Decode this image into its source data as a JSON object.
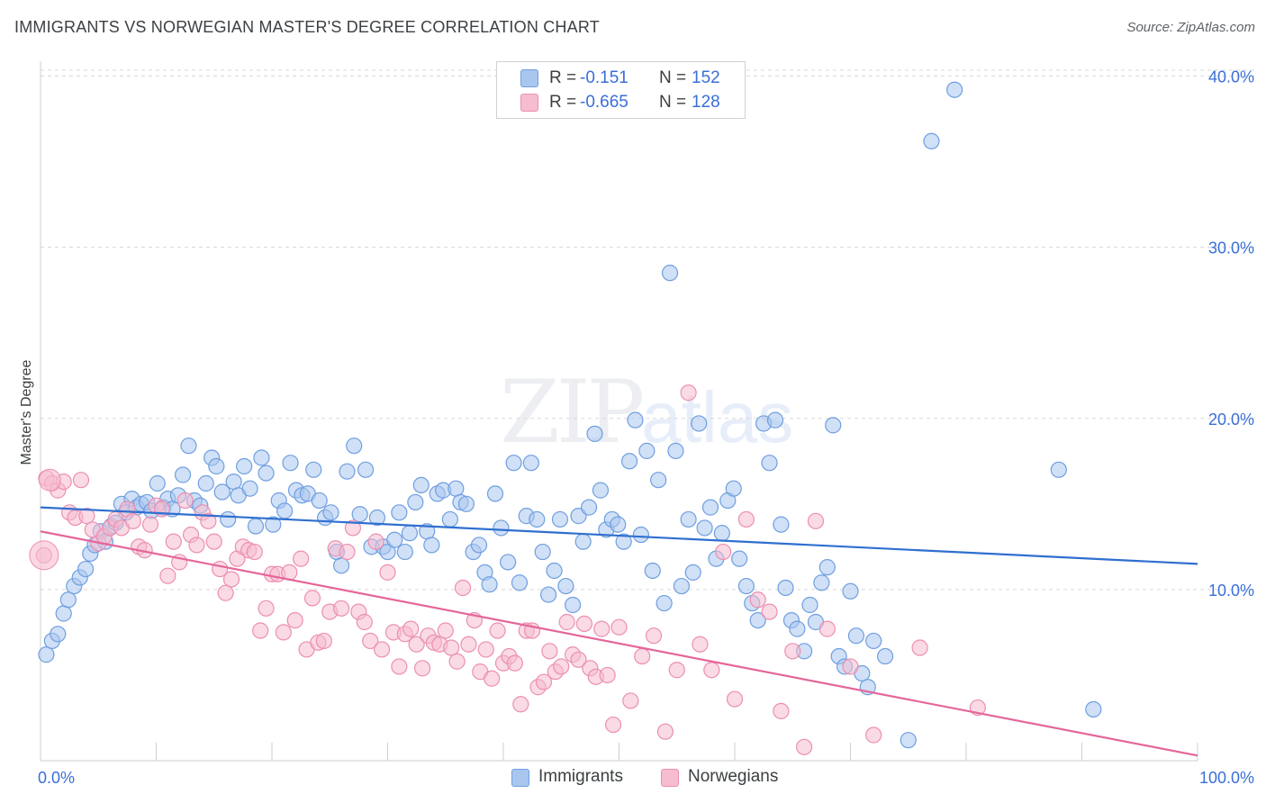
{
  "title": "IMMIGRANTS VS NORWEGIAN MASTER'S DEGREE CORRELATION CHART",
  "source": "Source: ZipAtlas.com",
  "watermark": {
    "zip": "ZIP",
    "atlas": "atlas"
  },
  "legend": {
    "rows": [
      {
        "r_label": "R =",
        "r_value": "-0.151",
        "n_label": "N =",
        "n_value": "152"
      },
      {
        "r_label": "R =",
        "r_value": "-0.665",
        "n_label": "N =",
        "n_value": "128"
      }
    ]
  },
  "bottom_legend": {
    "immigrants": "Immigrants",
    "norwegians": "Norwegians"
  },
  "colors": {
    "immigrants_fill": "#a9c6ef",
    "immigrants_stroke": "#6f9fe0",
    "immigrants_line": "#2f6fd0",
    "norwegians_fill": "#f6bcd0",
    "norwegians_stroke": "#ec8fb0",
    "norwegians_line": "#e4669a",
    "tick_text": "#3a6fd8",
    "grid": "#d8d8d8"
  },
  "chart_data": {
    "type": "scatter",
    "title": "IMMIGRANTS VS NORWEGIAN MASTER'S DEGREE CORRELATION CHART",
    "xlabel": "",
    "ylabel": "Master's Degree",
    "xlim": [
      0,
      100
    ],
    "ylim": [
      0,
      40.5
    ],
    "x_tick_labels": [
      "0.0%",
      "100.0%"
    ],
    "y_ticks": [
      10,
      20,
      30,
      40
    ],
    "y_tick_labels": [
      "10.0%",
      "20.0%",
      "30.0%",
      "40.0%"
    ],
    "series": [
      {
        "name": "Immigrants",
        "R": -0.151,
        "N": 152,
        "trend": {
          "x": [
            0,
            100
          ],
          "y": [
            14.8,
            11.5
          ]
        },
        "points": [
          [
            0.5,
            6.2
          ],
          [
            1,
            7
          ],
          [
            1.5,
            7.4
          ],
          [
            2,
            8.6
          ],
          [
            2.4,
            9.4
          ],
          [
            2.9,
            10.2
          ],
          [
            3.4,
            10.7
          ],
          [
            3.9,
            11.2
          ],
          [
            4.3,
            12.1
          ],
          [
            4.7,
            12.6
          ],
          [
            5.2,
            13.4
          ],
          [
            5.6,
            12.8
          ],
          [
            6.1,
            13.7
          ],
          [
            6.5,
            13.9
          ],
          [
            7,
            15
          ],
          [
            7.4,
            14.5
          ],
          [
            7.9,
            15.3
          ],
          [
            8.3,
            14.8
          ],
          [
            8.7,
            15
          ],
          [
            9.2,
            15.1
          ],
          [
            9.6,
            14.6
          ],
          [
            10.1,
            16.2
          ],
          [
            10.6,
            14.8
          ],
          [
            11,
            15.3
          ],
          [
            11.4,
            14.7
          ],
          [
            11.9,
            15.5
          ],
          [
            12.3,
            16.7
          ],
          [
            12.8,
            18.4
          ],
          [
            13.3,
            15.2
          ],
          [
            13.8,
            14.9
          ],
          [
            14.3,
            16.2
          ],
          [
            14.8,
            17.7
          ],
          [
            15.2,
            17.2
          ],
          [
            15.7,
            15.7
          ],
          [
            16.2,
            14.1
          ],
          [
            16.7,
            16.3
          ],
          [
            17.1,
            15.5
          ],
          [
            17.6,
            17.2
          ],
          [
            18.1,
            15.9
          ],
          [
            18.6,
            13.7
          ],
          [
            19.1,
            17.7
          ],
          [
            19.5,
            16.8
          ],
          [
            20.1,
            13.8
          ],
          [
            20.6,
            15.2
          ],
          [
            21.1,
            14.6
          ],
          [
            21.6,
            17.4
          ],
          [
            22.1,
            15.8
          ],
          [
            22.6,
            15.5
          ],
          [
            23.1,
            15.6
          ],
          [
            23.6,
            17
          ],
          [
            24.1,
            15.2
          ],
          [
            24.6,
            14.2
          ],
          [
            25.1,
            14.5
          ],
          [
            25.6,
            12.2
          ],
          [
            26,
            11.4
          ],
          [
            26.5,
            16.9
          ],
          [
            27.1,
            18.4
          ],
          [
            27.6,
            14.4
          ],
          [
            28.1,
            17
          ],
          [
            28.6,
            12.5
          ],
          [
            29.1,
            14.2
          ],
          [
            29.6,
            12.5
          ],
          [
            30,
            12.2
          ],
          [
            30.6,
            12.9
          ],
          [
            31,
            14.5
          ],
          [
            31.5,
            12.2
          ],
          [
            31.9,
            13.3
          ],
          [
            32.4,
            15.1
          ],
          [
            32.9,
            16.1
          ],
          [
            33.4,
            13.4
          ],
          [
            33.8,
            12.6
          ],
          [
            34.3,
            15.6
          ],
          [
            34.8,
            15.8
          ],
          [
            35.4,
            14.1
          ],
          [
            35.9,
            15.9
          ],
          [
            36.3,
            15.1
          ],
          [
            36.8,
            15
          ],
          [
            37.4,
            12.2
          ],
          [
            37.9,
            12.6
          ],
          [
            38.4,
            11
          ],
          [
            38.8,
            10.3
          ],
          [
            39.3,
            15.6
          ],
          [
            39.8,
            13.6
          ],
          [
            40.4,
            11.6
          ],
          [
            40.9,
            17.4
          ],
          [
            41.4,
            10.4
          ],
          [
            42,
            14.3
          ],
          [
            42.4,
            17.4
          ],
          [
            42.9,
            14.1
          ],
          [
            43.4,
            12.2
          ],
          [
            43.9,
            9.7
          ],
          [
            44.4,
            11.1
          ],
          [
            44.9,
            14.1
          ],
          [
            45.4,
            10.2
          ],
          [
            46,
            9.1
          ],
          [
            46.5,
            14.3
          ],
          [
            46.9,
            12.8
          ],
          [
            47.4,
            14.8
          ],
          [
            47.9,
            19.1
          ],
          [
            48.4,
            15.8
          ],
          [
            48.9,
            13.5
          ],
          [
            49.4,
            14.1
          ],
          [
            49.9,
            13.8
          ],
          [
            50.4,
            12.8
          ],
          [
            50.9,
            17.5
          ],
          [
            51.4,
            19.9
          ],
          [
            51.9,
            13.2
          ],
          [
            52.4,
            18.1
          ],
          [
            52.9,
            11.1
          ],
          [
            53.4,
            16.4
          ],
          [
            53.9,
            9.2
          ],
          [
            54.4,
            28.5
          ],
          [
            54.9,
            18.1
          ],
          [
            55.4,
            10.2
          ],
          [
            56,
            14.1
          ],
          [
            56.4,
            11
          ],
          [
            56.9,
            19.7
          ],
          [
            57.4,
            13.6
          ],
          [
            57.9,
            14.8
          ],
          [
            58.4,
            11.8
          ],
          [
            58.9,
            13.3
          ],
          [
            59.4,
            15.2
          ],
          [
            59.9,
            15.9
          ],
          [
            60.4,
            11.8
          ],
          [
            61,
            10.2
          ],
          [
            61.5,
            9.2
          ],
          [
            62,
            8.2
          ],
          [
            62.5,
            19.7
          ],
          [
            63,
            17.4
          ],
          [
            63.5,
            19.9
          ],
          [
            64,
            13.8
          ],
          [
            64.4,
            10.1
          ],
          [
            64.9,
            8.2
          ],
          [
            65.4,
            7.7
          ],
          [
            66,
            6.4
          ],
          [
            66.5,
            9.1
          ],
          [
            67,
            8.1
          ],
          [
            67.5,
            10.4
          ],
          [
            68,
            11.3
          ],
          [
            68.5,
            19.6
          ],
          [
            69,
            6.1
          ],
          [
            69.5,
            5.5
          ],
          [
            70,
            9.9
          ],
          [
            70.5,
            7.3
          ],
          [
            71,
            5.1
          ],
          [
            71.5,
            4.3
          ],
          [
            72,
            7
          ],
          [
            73,
            6.1
          ],
          [
            75,
            1.2
          ],
          [
            77,
            36.2
          ],
          [
            79,
            39.2
          ],
          [
            88,
            17
          ],
          [
            91,
            3
          ]
        ]
      },
      {
        "name": "Norwegians",
        "R": -0.665,
        "N": 128,
        "trend": {
          "x": [
            0,
            100
          ],
          "y": [
            13.4,
            0.3
          ]
        },
        "points": [
          [
            0.5,
            16.5
          ],
          [
            1,
            16.2
          ],
          [
            1.5,
            15.8
          ],
          [
            2,
            16.3
          ],
          [
            2.5,
            14.5
          ],
          [
            3,
            14.2
          ],
          [
            3.5,
            16.4
          ],
          [
            4,
            14.3
          ],
          [
            4.5,
            13.5
          ],
          [
            5,
            12.7
          ],
          [
            5.5,
            13.1
          ],
          [
            6,
            13.6
          ],
          [
            6.5,
            14.1
          ],
          [
            7,
            13.6
          ],
          [
            7.5,
            14.7
          ],
          [
            8,
            14
          ],
          [
            8.5,
            12.5
          ],
          [
            9,
            12.3
          ],
          [
            9.5,
            13.8
          ],
          [
            10,
            14.9
          ],
          [
            10.5,
            14.7
          ],
          [
            11,
            10.8
          ],
          [
            11.5,
            12.8
          ],
          [
            12,
            11.6
          ],
          [
            12.5,
            15.2
          ],
          [
            13,
            13.2
          ],
          [
            13.5,
            12.6
          ],
          [
            14,
            14.5
          ],
          [
            14.5,
            14
          ],
          [
            15,
            12.8
          ],
          [
            15.5,
            11.2
          ],
          [
            16,
            9.8
          ],
          [
            16.5,
            10.6
          ],
          [
            17,
            11.8
          ],
          [
            17.5,
            12.5
          ],
          [
            18,
            12.3
          ],
          [
            18.5,
            12.2
          ],
          [
            19,
            7.6
          ],
          [
            19.5,
            8.9
          ],
          [
            20,
            10.9
          ],
          [
            20.5,
            10.9
          ],
          [
            21,
            7.5
          ],
          [
            21.5,
            11
          ],
          [
            22,
            8.2
          ],
          [
            22.5,
            11.8
          ],
          [
            23,
            6.5
          ],
          [
            23.5,
            9.5
          ],
          [
            24,
            6.9
          ],
          [
            24.5,
            7
          ],
          [
            25,
            8.7
          ],
          [
            25.5,
            12.4
          ],
          [
            26,
            8.9
          ],
          [
            26.5,
            12.2
          ],
          [
            27,
            13.6
          ],
          [
            27.5,
            8.7
          ],
          [
            28,
            8.1
          ],
          [
            28.5,
            7
          ],
          [
            29,
            12.8
          ],
          [
            29.5,
            6.5
          ],
          [
            30,
            11
          ],
          [
            30.5,
            7.5
          ],
          [
            31,
            5.5
          ],
          [
            31.5,
            7.4
          ],
          [
            32,
            7.7
          ],
          [
            32.5,
            6.8
          ],
          [
            33,
            5.4
          ],
          [
            33.5,
            7.3
          ],
          [
            34,
            6.9
          ],
          [
            34.5,
            6.8
          ],
          [
            35,
            7.6
          ],
          [
            35.5,
            6.6
          ],
          [
            36,
            5.8
          ],
          [
            36.5,
            10.1
          ],
          [
            37,
            6.8
          ],
          [
            37.5,
            8.2
          ],
          [
            38,
            5.2
          ],
          [
            38.5,
            6.5
          ],
          [
            39,
            4.8
          ],
          [
            39.5,
            7.6
          ],
          [
            40,
            5.7
          ],
          [
            40.5,
            6.1
          ],
          [
            41,
            5.7
          ],
          [
            41.5,
            3.3
          ],
          [
            42,
            7.6
          ],
          [
            42.5,
            7.6
          ],
          [
            43,
            4.3
          ],
          [
            43.5,
            4.6
          ],
          [
            44,
            6.4
          ],
          [
            44.5,
            5.2
          ],
          [
            45,
            5.5
          ],
          [
            45.5,
            8.1
          ],
          [
            46,
            6.2
          ],
          [
            46.5,
            5.9
          ],
          [
            47,
            8
          ],
          [
            47.5,
            5.4
          ],
          [
            48,
            4.9
          ],
          [
            48.5,
            7.7
          ],
          [
            49,
            5
          ],
          [
            49.5,
            2.1
          ],
          [
            50,
            7.8
          ],
          [
            51,
            3.5
          ],
          [
            52,
            6.1
          ],
          [
            53,
            7.3
          ],
          [
            54,
            1.7
          ],
          [
            55,
            5.3
          ],
          [
            56,
            21.5
          ],
          [
            57,
            6.8
          ],
          [
            58,
            5.3
          ],
          [
            59,
            12.2
          ],
          [
            60,
            3.6
          ],
          [
            61,
            14.1
          ],
          [
            62,
            9.4
          ],
          [
            63,
            8.7
          ],
          [
            64,
            2.9
          ],
          [
            65,
            6.4
          ],
          [
            66,
            0.8
          ],
          [
            67,
            14
          ],
          [
            68,
            7.7
          ],
          [
            70,
            5.5
          ],
          [
            72,
            1.5
          ],
          [
            76,
            6.6
          ],
          [
            81,
            3.1
          ],
          [
            0.3,
            12
          ]
        ]
      }
    ]
  }
}
